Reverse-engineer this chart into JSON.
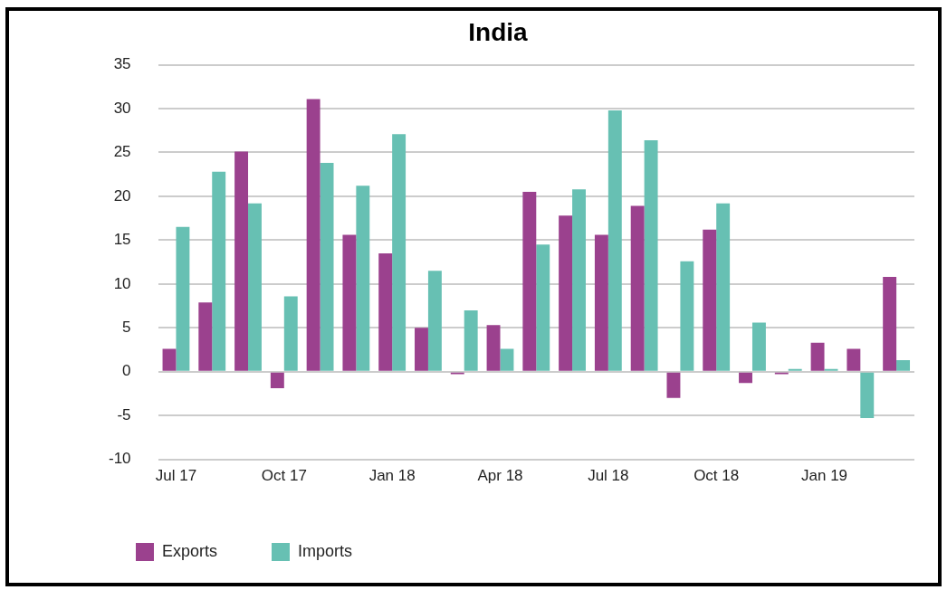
{
  "chart_data": {
    "type": "bar",
    "title": "India",
    "categories": [
      "Jul 17",
      null,
      null,
      "Oct 17",
      null,
      null,
      "Jan 18",
      null,
      null,
      "Apr 18",
      null,
      null,
      "Jul 18",
      null,
      null,
      "Oct 18",
      null,
      null,
      "Jan 19",
      null,
      null
    ],
    "series": [
      {
        "name": "Exports",
        "color": "#9b418e",
        "values": [
          2.6,
          7.9,
          25.1,
          -1.9,
          31.1,
          15.6,
          13.5,
          5.0,
          -0.3,
          5.3,
          20.5,
          17.8,
          15.6,
          18.9,
          -3.0,
          16.2,
          -1.3,
          -0.3,
          3.3,
          2.6,
          10.8
        ]
      },
      {
        "name": "Imports",
        "color": "#67c0b3",
        "values": [
          16.5,
          22.8,
          19.2,
          8.6,
          23.8,
          21.2,
          27.1,
          11.5,
          7.0,
          2.6,
          14.5,
          20.8,
          29.8,
          26.4,
          12.6,
          19.2,
          5.6,
          0.3,
          0.3,
          -5.3,
          1.3
        ]
      }
    ],
    "ylim": [
      -10,
      35
    ],
    "yticks": [
      -10,
      -5,
      0,
      5,
      10,
      15,
      20,
      25,
      30,
      35
    ],
    "grid": "y",
    "legend": "bottom left"
  }
}
